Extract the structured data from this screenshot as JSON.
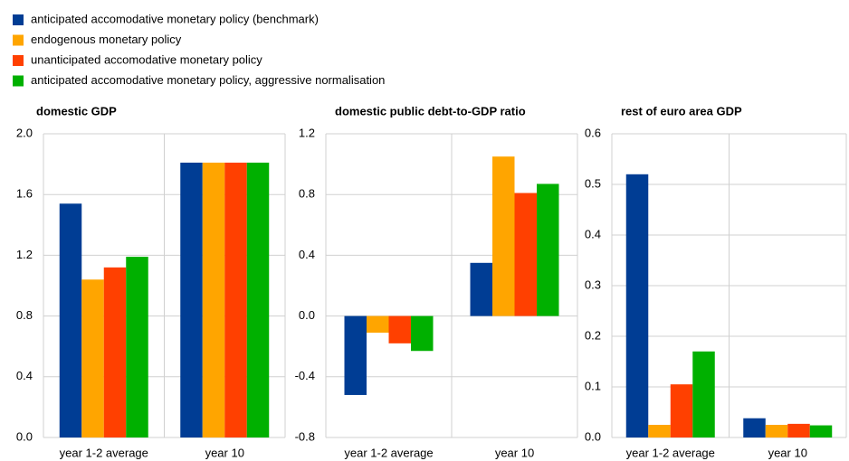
{
  "chart_data": [
    {
      "type": "bar",
      "title": "domestic GDP",
      "categories": [
        "year 1-2 average",
        "year 10"
      ],
      "series": [
        {
          "name": "anticipated accomodative monetary policy (benchmark)",
          "color": "#003d94",
          "values": [
            1.54,
            1.81
          ]
        },
        {
          "name": "endogenous monetary policy",
          "color": "#ffa500",
          "values": [
            1.04,
            1.81
          ]
        },
        {
          "name": "unanticipated accomodative monetary policy",
          "color": "#ff4000",
          "values": [
            1.12,
            1.81
          ]
        },
        {
          "name": "anticipated accomodative monetary policy, aggressive normalisation",
          "color": "#00b000",
          "values": [
            1.19,
            1.81
          ]
        }
      ],
      "ylim": [
        0,
        2
      ],
      "yticks": [
        {
          "value": 0,
          "label": "0.0"
        },
        0.4,
        0.8,
        1.2,
        1.6,
        {
          "value": 2,
          "label": "2.0"
        }
      ],
      "grid": true
    },
    {
      "type": "bar",
      "title": "domestic public debt-to-GDP ratio",
      "categories": [
        "year 1-2 average",
        "year 10"
      ],
      "series": [
        {
          "color": "#003d94",
          "values": [
            -0.52,
            0.35
          ]
        },
        {
          "color": "#ffa500",
          "values": [
            -0.11,
            1.05
          ]
        },
        {
          "color": "#ff4000",
          "values": [
            -0.18,
            0.81
          ]
        },
        {
          "color": "#00b000",
          "values": [
            -0.23,
            0.87
          ]
        }
      ],
      "ylim": [
        -0.8,
        1.2
      ],
      "yticks": [
        -0.8,
        -0.4,
        {
          "value": 0,
          "label": "0.0"
        },
        0.4,
        0.8,
        1.2
      ],
      "grid": true
    },
    {
      "type": "bar",
      "title": "rest of euro area GDP",
      "categories": [
        "year 1-2 average",
        "year 10"
      ],
      "series": [
        {
          "color": "#003d94",
          "values": [
            0.52,
            0.038
          ]
        },
        {
          "color": "#ffa500",
          "values": [
            0.025,
            0.025
          ]
        },
        {
          "color": "#ff4000",
          "values": [
            0.105,
            0.027
          ]
        },
        {
          "color": "#00b000",
          "values": [
            0.17,
            0.024
          ]
        }
      ],
      "ylim": [
        0,
        0.6
      ],
      "yticks": [
        {
          "value": 0,
          "label": "0.0"
        },
        0.1,
        0.2,
        0.3,
        0.4,
        0.5,
        0.6
      ],
      "grid": true
    }
  ]
}
